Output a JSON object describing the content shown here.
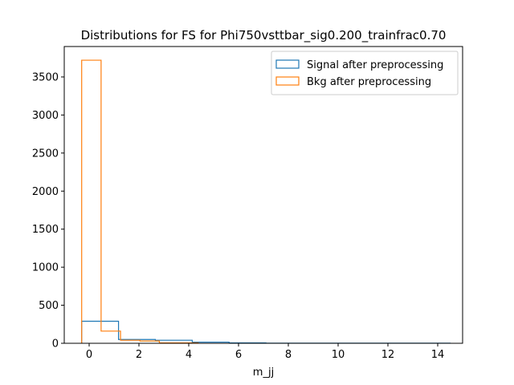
{
  "chart_data": {
    "type": "histogram",
    "title": "Distributions for FS for Phi750vsttbar_sig0.200_trainfrac0.70",
    "xlabel": "m_jj",
    "ylabel": "",
    "xlim": [
      -1.0,
      15.0
    ],
    "ylim": [
      0,
      3900
    ],
    "xticks": [
      0,
      2,
      4,
      6,
      8,
      10,
      12,
      14
    ],
    "yticks": [
      0,
      500,
      1000,
      1500,
      2000,
      2500,
      3000,
      3500
    ],
    "grid": false,
    "legend_position": "top-right",
    "series": [
      {
        "name": "Signal after preprocessing",
        "color": "#1f77b4",
        "bin_edges": [
          -0.3,
          1.18,
          2.66,
          4.14,
          5.62,
          7.1,
          8.58,
          10.06,
          11.54,
          13.02,
          14.5
        ],
        "counts": [
          290,
          50,
          40,
          15,
          5,
          2,
          1,
          1,
          1,
          1
        ]
      },
      {
        "name": "Bkg after preprocessing",
        "color": "#ff7f0e",
        "bin_edges": [
          -0.3,
          0.48,
          1.26,
          2.04,
          2.82,
          3.6,
          4.38
        ],
        "counts": [
          3720,
          160,
          40,
          30,
          5,
          5
        ]
      }
    ]
  }
}
